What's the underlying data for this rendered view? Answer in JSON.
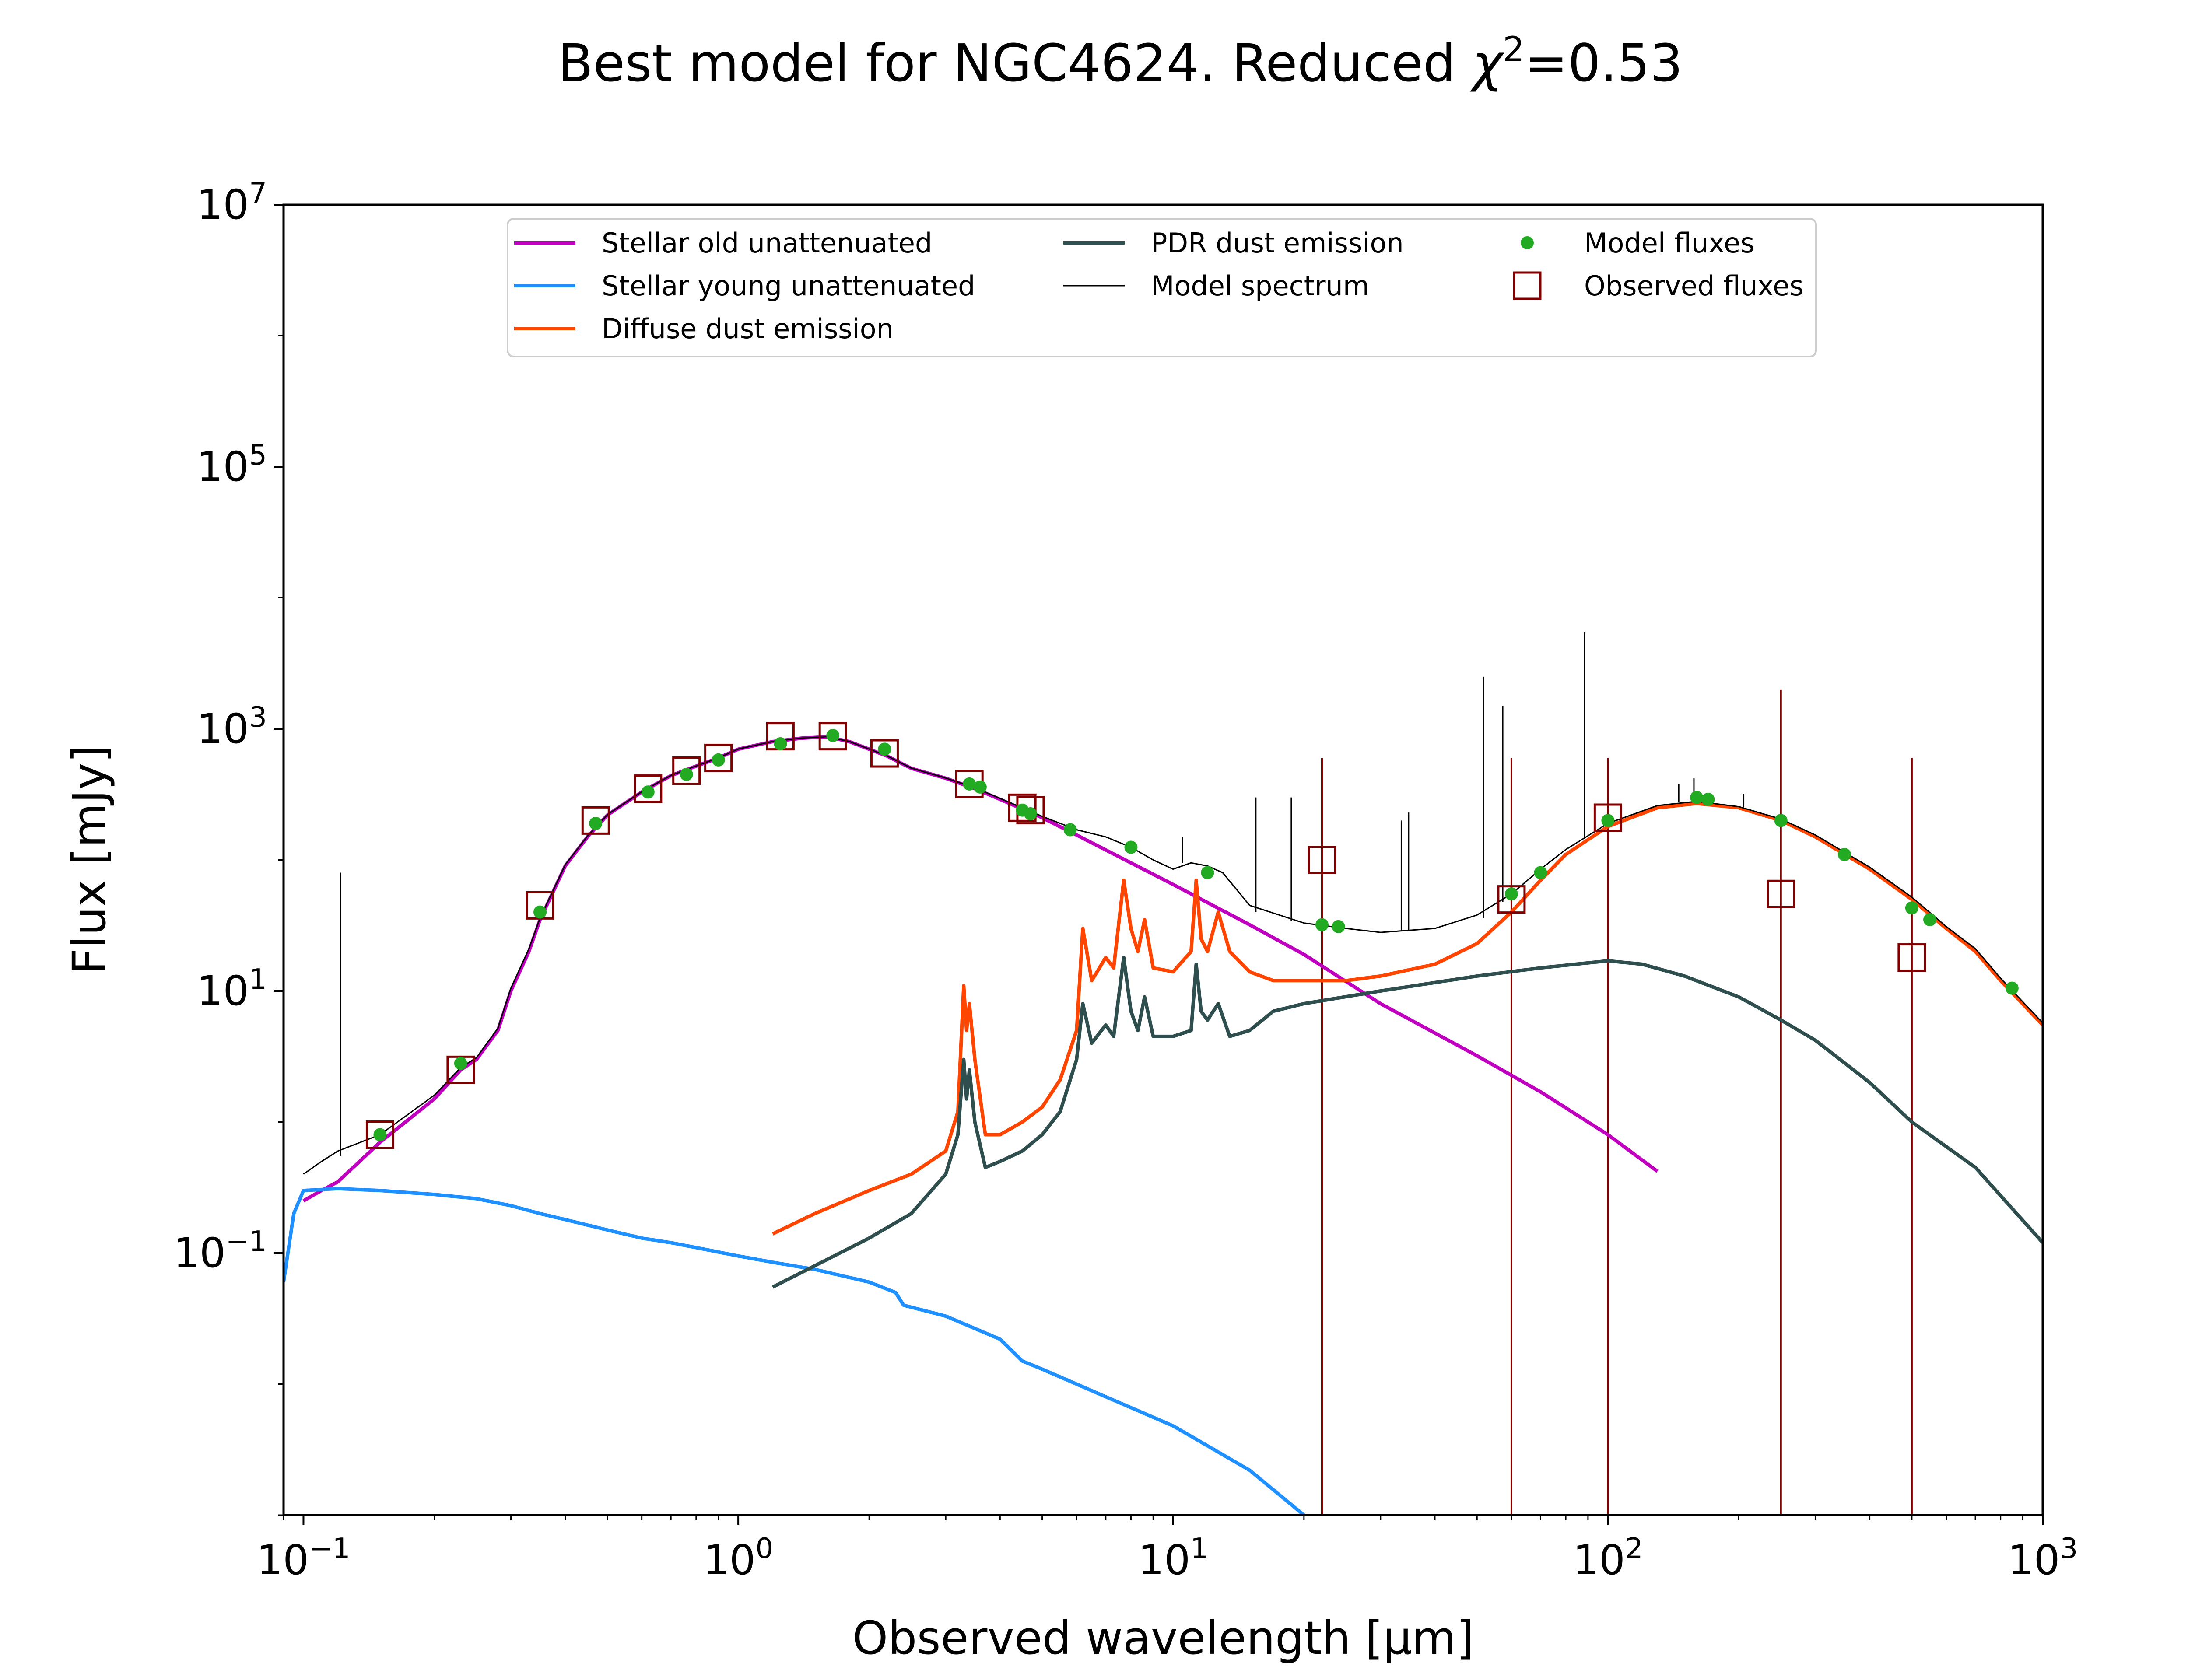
{
  "chart_data": {
    "type": "line",
    "title_main": "Best model for NGC4624. Reduced ",
    "title_chi": "χ",
    "title_chi_sup": "2",
    "title_value": "=0.53",
    "xlabel": "Observed wavelength [μm]",
    "ylabel": "Flux [mJy]",
    "xscale": "log",
    "yscale": "log",
    "xlim": [
      0.09,
      1000
    ],
    "ylim": [
      0.001,
      10000000
    ],
    "xticks": [
      {
        "value": 0.1,
        "base": "10",
        "exp": "−1"
      },
      {
        "value": 1,
        "base": "10",
        "exp": "0"
      },
      {
        "value": 10,
        "base": "10",
        "exp": "1"
      },
      {
        "value": 100,
        "base": "10",
        "exp": "2"
      },
      {
        "value": 1000,
        "base": "10",
        "exp": "3"
      }
    ],
    "yticks": [
      {
        "value": 0.1,
        "base": "10",
        "exp": "−1"
      },
      {
        "value": 10,
        "base": "10",
        "exp": "1"
      },
      {
        "value": 1000,
        "base": "10",
        "exp": "3"
      },
      {
        "value": 100000,
        "base": "10",
        "exp": "5"
      },
      {
        "value": 10000000,
        "base": "10",
        "exp": "7"
      }
    ],
    "legend_position": "upper-center",
    "legend": [
      {
        "label": "Stellar old unattenuated",
        "kind": "line",
        "color": "#bf00bf"
      },
      {
        "label": "Stellar young unattenuated",
        "kind": "line",
        "color": "#1e90ff"
      },
      {
        "label": "Diffuse dust emission",
        "kind": "line",
        "color": "#ff4500"
      },
      {
        "label": "PDR dust emission",
        "kind": "line",
        "color": "#2f4f4f"
      },
      {
        "label": "Model spectrum",
        "kind": "thinline",
        "color": "#000000"
      },
      {
        "label": "Model fluxes",
        "kind": "dot",
        "color": "#22aa22"
      },
      {
        "label": "Observed fluxes",
        "kind": "square",
        "color": "#800000"
      }
    ],
    "series": [
      {
        "name": "Stellar old unattenuated",
        "color": "#bf00bf",
        "points": [
          [
            0.1,
            0.25
          ],
          [
            0.11,
            0.3
          ],
          [
            0.12,
            0.35
          ],
          [
            0.15,
            0.7
          ],
          [
            0.2,
            1.5
          ],
          [
            0.23,
            2.5
          ],
          [
            0.25,
            3
          ],
          [
            0.28,
            5
          ],
          [
            0.3,
            10
          ],
          [
            0.33,
            20
          ],
          [
            0.35,
            35
          ],
          [
            0.4,
            90
          ],
          [
            0.45,
            150
          ],
          [
            0.5,
            220
          ],
          [
            0.6,
            330
          ],
          [
            0.7,
            440
          ],
          [
            0.8,
            520
          ],
          [
            0.9,
            600
          ],
          [
            1.0,
            700
          ],
          [
            1.2,
            800
          ],
          [
            1.4,
            850
          ],
          [
            1.6,
            870
          ],
          [
            1.8,
            800
          ],
          [
            2.0,
            700
          ],
          [
            2.2,
            620
          ],
          [
            2.5,
            500
          ],
          [
            3.0,
            420
          ],
          [
            3.5,
            350
          ],
          [
            4.0,
            290
          ],
          [
            5.0,
            210
          ],
          [
            6.0,
            155
          ],
          [
            8.0,
            95
          ],
          [
            10,
            65
          ],
          [
            15,
            32
          ],
          [
            20,
            19
          ],
          [
            30,
            8
          ],
          [
            50,
            3.2
          ],
          [
            70,
            1.7
          ],
          [
            100,
            0.8
          ],
          [
            130,
            0.42
          ]
        ]
      },
      {
        "name": "Stellar young unattenuated",
        "color": "#1e90ff",
        "points": [
          [
            0.09,
            0.06
          ],
          [
            0.095,
            0.2
          ],
          [
            0.1,
            0.3
          ],
          [
            0.12,
            0.31
          ],
          [
            0.15,
            0.3
          ],
          [
            0.2,
            0.28
          ],
          [
            0.25,
            0.26
          ],
          [
            0.3,
            0.23
          ],
          [
            0.35,
            0.2
          ],
          [
            0.4,
            0.18
          ],
          [
            0.5,
            0.15
          ],
          [
            0.6,
            0.13
          ],
          [
            0.7,
            0.12
          ],
          [
            0.8,
            0.11
          ],
          [
            1.0,
            0.095
          ],
          [
            1.2,
            0.085
          ],
          [
            1.5,
            0.075
          ],
          [
            2.0,
            0.06
          ],
          [
            2.3,
            0.05
          ],
          [
            2.4,
            0.04
          ],
          [
            3.0,
            0.033
          ],
          [
            4.0,
            0.022
          ],
          [
            4.5,
            0.015
          ],
          [
            5.0,
            0.013
          ],
          [
            7.0,
            0.008
          ],
          [
            10,
            0.0048
          ],
          [
            15,
            0.0022
          ],
          [
            20,
            0.001
          ]
        ]
      },
      {
        "name": "Diffuse dust emission",
        "color": "#ff4500",
        "points": [
          [
            1.2,
            0.14
          ],
          [
            1.5,
            0.2
          ],
          [
            2.0,
            0.3
          ],
          [
            2.5,
            0.4
          ],
          [
            3.0,
            0.6
          ],
          [
            3.2,
            1.2
          ],
          [
            3.3,
            11
          ],
          [
            3.35,
            5
          ],
          [
            3.4,
            8
          ],
          [
            3.5,
            3
          ],
          [
            3.7,
            0.8
          ],
          [
            4.0,
            0.8
          ],
          [
            4.5,
            1
          ],
          [
            5.0,
            1.3
          ],
          [
            5.5,
            2.1
          ],
          [
            6.0,
            5
          ],
          [
            6.2,
            30
          ],
          [
            6.5,
            12
          ],
          [
            7.0,
            18
          ],
          [
            7.3,
            15
          ],
          [
            7.7,
            70
          ],
          [
            8.0,
            30
          ],
          [
            8.3,
            20
          ],
          [
            8.6,
            35
          ],
          [
            9.0,
            15
          ],
          [
            10,
            14
          ],
          [
            11.0,
            20
          ],
          [
            11.3,
            70
          ],
          [
            11.6,
            25
          ],
          [
            12.0,
            20
          ],
          [
            12.7,
            40
          ],
          [
            13.5,
            20
          ],
          [
            15,
            14
          ],
          [
            17,
            12
          ],
          [
            20,
            12
          ],
          [
            25,
            12
          ],
          [
            30,
            13
          ],
          [
            40,
            16
          ],
          [
            50,
            23
          ],
          [
            60,
            40
          ],
          [
            70,
            70
          ],
          [
            80,
            110
          ],
          [
            100,
            180
          ],
          [
            130,
            250
          ],
          [
            160,
            270
          ],
          [
            200,
            250
          ],
          [
            250,
            200
          ],
          [
            300,
            150
          ],
          [
            400,
            85
          ],
          [
            500,
            50
          ],
          [
            600,
            30
          ],
          [
            700,
            20
          ],
          [
            800,
            12
          ],
          [
            1000,
            5.5
          ]
        ]
      },
      {
        "name": "PDR dust emission",
        "color": "#2f4f4f",
        "points": [
          [
            1.2,
            0.055
          ],
          [
            1.5,
            0.08
          ],
          [
            2.0,
            0.13
          ],
          [
            2.5,
            0.2
          ],
          [
            3.0,
            0.4
          ],
          [
            3.2,
            0.8
          ],
          [
            3.3,
            3
          ],
          [
            3.35,
            1.5
          ],
          [
            3.4,
            2.5
          ],
          [
            3.5,
            1
          ],
          [
            3.7,
            0.45
          ],
          [
            4.0,
            0.5
          ],
          [
            4.5,
            0.6
          ],
          [
            5.0,
            0.8
          ],
          [
            5.5,
            1.2
          ],
          [
            6.0,
            3
          ],
          [
            6.2,
            8
          ],
          [
            6.5,
            4
          ],
          [
            7.0,
            5.5
          ],
          [
            7.3,
            4.5
          ],
          [
            7.7,
            18
          ],
          [
            8.0,
            7
          ],
          [
            8.3,
            5
          ],
          [
            8.6,
            9
          ],
          [
            9.0,
            4.5
          ],
          [
            10,
            4.5
          ],
          [
            11.0,
            5
          ],
          [
            11.3,
            16
          ],
          [
            11.6,
            7
          ],
          [
            12.0,
            6
          ],
          [
            12.7,
            8
          ],
          [
            13.5,
            4.5
          ],
          [
            15,
            5
          ],
          [
            17,
            7
          ],
          [
            20,
            8
          ],
          [
            30,
            10
          ],
          [
            50,
            13
          ],
          [
            70,
            15
          ],
          [
            100,
            17
          ],
          [
            120,
            16
          ],
          [
            150,
            13
          ],
          [
            200,
            9
          ],
          [
            250,
            6
          ],
          [
            300,
            4.2
          ],
          [
            400,
            2
          ],
          [
            500,
            1
          ],
          [
            700,
            0.45
          ],
          [
            1000,
            0.12
          ]
        ]
      },
      {
        "name": "Model spectrum",
        "color": "#000000",
        "points": [
          [
            0.1,
            0.4
          ],
          [
            0.11,
            0.5
          ],
          [
            0.12,
            0.6
          ],
          [
            0.15,
            0.8
          ],
          [
            0.2,
            1.6
          ],
          [
            0.23,
            2.6
          ],
          [
            0.25,
            3.1
          ],
          [
            0.28,
            5.2
          ],
          [
            0.3,
            10.5
          ],
          [
            0.33,
            21
          ],
          [
            0.35,
            36
          ],
          [
            0.4,
            92
          ],
          [
            0.45,
            152
          ],
          [
            0.5,
            222
          ],
          [
            0.6,
            332
          ],
          [
            0.7,
            442
          ],
          [
            0.8,
            522
          ],
          [
            0.9,
            602
          ],
          [
            1.0,
            702
          ],
          [
            1.2,
            802
          ],
          [
            1.4,
            852
          ],
          [
            1.6,
            872
          ],
          [
            1.8,
            802
          ],
          [
            2.0,
            702
          ],
          [
            2.2,
            622
          ],
          [
            2.5,
            502
          ],
          [
            3.0,
            422
          ],
          [
            3.5,
            355
          ],
          [
            4.0,
            295
          ],
          [
            5.0,
            215
          ],
          [
            6.0,
            170
          ],
          [
            7.0,
            150
          ],
          [
            8.0,
            125
          ],
          [
            9.0,
            100
          ],
          [
            10,
            85
          ],
          [
            11,
            95
          ],
          [
            12,
            90
          ],
          [
            13,
            80
          ],
          [
            15,
            45
          ],
          [
            20,
            33
          ],
          [
            25,
            30
          ],
          [
            30,
            28
          ],
          [
            40,
            30
          ],
          [
            50,
            38
          ],
          [
            60,
            55
          ],
          [
            70,
            85
          ],
          [
            80,
            120
          ],
          [
            100,
            190
          ],
          [
            130,
            260
          ],
          [
            160,
            280
          ],
          [
            200,
            255
          ],
          [
            250,
            205
          ],
          [
            300,
            155
          ],
          [
            400,
            88
          ],
          [
            500,
            52
          ],
          [
            600,
            31
          ],
          [
            700,
            21
          ],
          [
            800,
            12.5
          ],
          [
            1000,
            5.7
          ]
        ]
      }
    ],
    "model_fluxes": [
      [
        0.15,
        0.8
      ],
      [
        0.23,
        2.8
      ],
      [
        0.35,
        40
      ],
      [
        0.47,
        190
      ],
      [
        0.62,
        330
      ],
      [
        0.76,
        450
      ],
      [
        0.9,
        580
      ],
      [
        1.25,
        770
      ],
      [
        1.65,
        890
      ],
      [
        2.17,
        700
      ],
      [
        3.4,
        380
      ],
      [
        3.6,
        360
      ],
      [
        4.5,
        240
      ],
      [
        4.7,
        225
      ],
      [
        5.8,
        170
      ],
      [
        8.0,
        125
      ],
      [
        12,
        80
      ],
      [
        22,
        32
      ],
      [
        24,
        31
      ],
      [
        60,
        55
      ],
      [
        70,
        80
      ],
      [
        100,
        200
      ],
      [
        160,
        300
      ],
      [
        170,
        290
      ],
      [
        250,
        200
      ],
      [
        350,
        110
      ],
      [
        500,
        43
      ],
      [
        550,
        35
      ],
      [
        850,
        10.5
      ]
    ],
    "observed_fluxes": [
      [
        0.15,
        0.8
      ],
      [
        0.23,
        2.5
      ],
      [
        0.35,
        45
      ],
      [
        0.47,
        200
      ],
      [
        0.62,
        350
      ],
      [
        0.76,
        480
      ],
      [
        0.9,
        600
      ],
      [
        1.25,
        880
      ],
      [
        1.65,
        880
      ],
      [
        2.17,
        650
      ],
      [
        3.4,
        380
      ],
      [
        4.5,
        250
      ],
      [
        4.7,
        240
      ],
      [
        22,
        100
      ],
      [
        60,
        50
      ],
      [
        100,
        210
      ],
      [
        250,
        55
      ],
      [
        500,
        18
      ]
    ],
    "error_bars": [
      {
        "x": 22,
        "low": 0.001,
        "high": 600
      },
      {
        "x": 60,
        "low": 0.001,
        "high": 600
      },
      {
        "x": 100,
        "low": 0.001,
        "high": 600
      },
      {
        "x": 250,
        "low": 0.001,
        "high": 2000
      },
      {
        "x": 500,
        "low": 0.001,
        "high": 600
      }
    ],
    "spectrum_lines": [
      {
        "x": 0.1216,
        "top": 80,
        "base": 0.55
      },
      {
        "x": 10.5,
        "top": 150,
        "base": 95
      },
      {
        "x": 15.5,
        "top": 300,
        "base": 40
      },
      {
        "x": 18.7,
        "top": 300,
        "base": 34
      },
      {
        "x": 33.5,
        "top": 200,
        "base": 29
      },
      {
        "x": 34.8,
        "top": 230,
        "base": 29
      },
      {
        "x": 51.8,
        "top": 2500,
        "base": 36
      },
      {
        "x": 57.3,
        "top": 1500,
        "base": 48
      },
      {
        "x": 88.4,
        "top": 5500,
        "base": 150
      },
      {
        "x": 145.5,
        "top": 380,
        "base": 275
      },
      {
        "x": 157.7,
        "top": 420,
        "base": 282
      },
      {
        "x": 205.2,
        "top": 320,
        "base": 252
      }
    ]
  }
}
